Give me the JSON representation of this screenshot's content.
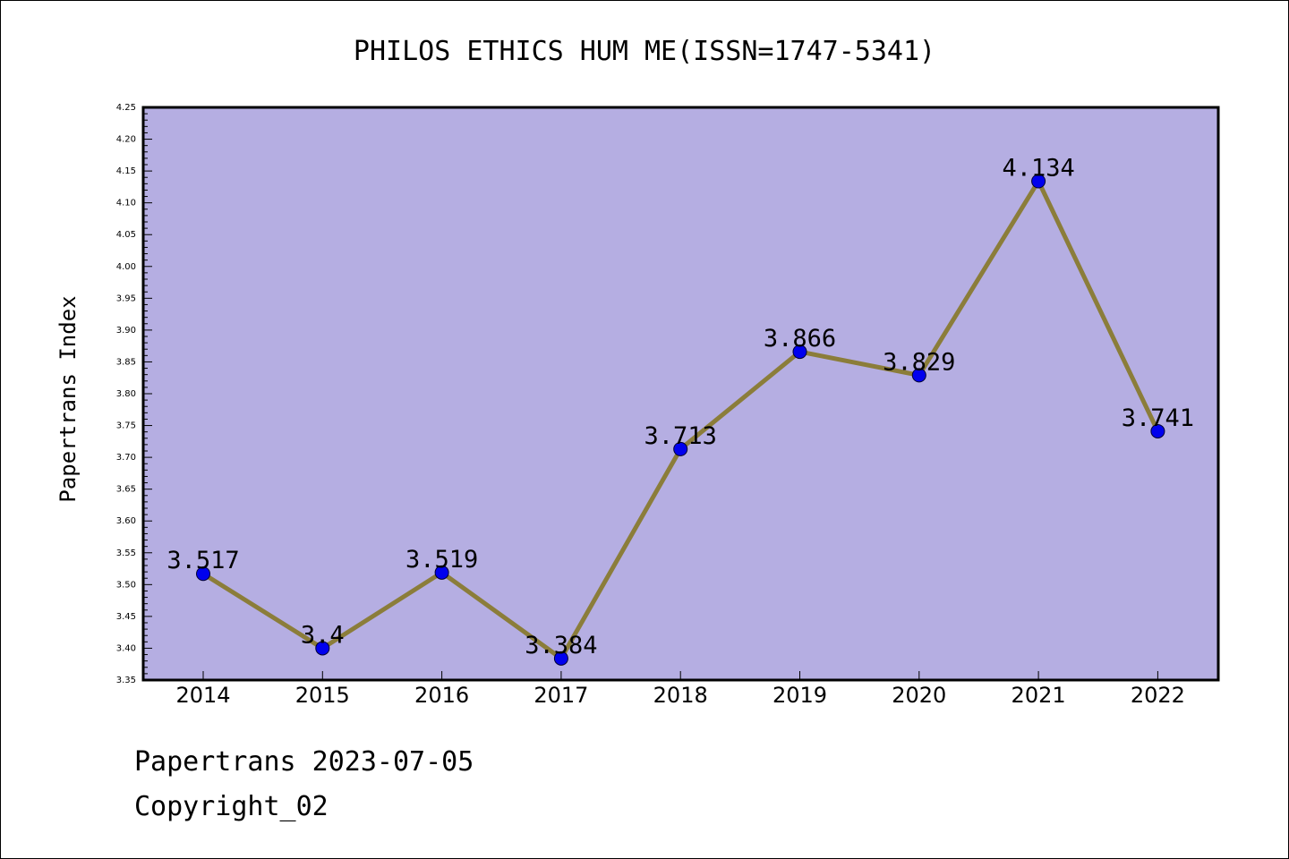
{
  "chart_data": {
    "type": "line",
    "title": "PHILOS ETHICS HUM ME(ISSN=1747-5341)",
    "xlabel": "",
    "ylabel": "Papertrans Index",
    "categories": [
      "2014",
      "2015",
      "2016",
      "2017",
      "2018",
      "2019",
      "2020",
      "2021",
      "2022"
    ],
    "series": [
      {
        "values": [
          3.517,
          3.4,
          3.519,
          3.384,
          3.713,
          3.866,
          3.829,
          4.134,
          3.741
        ],
        "labels": [
          "3.517",
          "3.4",
          "3.519",
          "3.384",
          "3.713",
          "3.866",
          "3.829",
          "4.134",
          "3.741"
        ]
      }
    ],
    "ylim": [
      3.35,
      4.25
    ],
    "yticks": [
      "3.35",
      "3.40",
      "3.45",
      "3.50",
      "3.55",
      "3.60",
      "3.65",
      "3.70",
      "3.75",
      "3.80",
      "3.85",
      "3.90",
      "3.95",
      "4.00",
      "4.05",
      "4.10",
      "4.15",
      "4.20",
      "4.25"
    ],
    "grid": false,
    "colors": {
      "background": "#b5aee2",
      "line": "#8b7d3a",
      "marker": "#0000ee"
    }
  },
  "footer": {
    "line1": "Papertrans 2023-07-05",
    "line2": "Copyright_02"
  }
}
